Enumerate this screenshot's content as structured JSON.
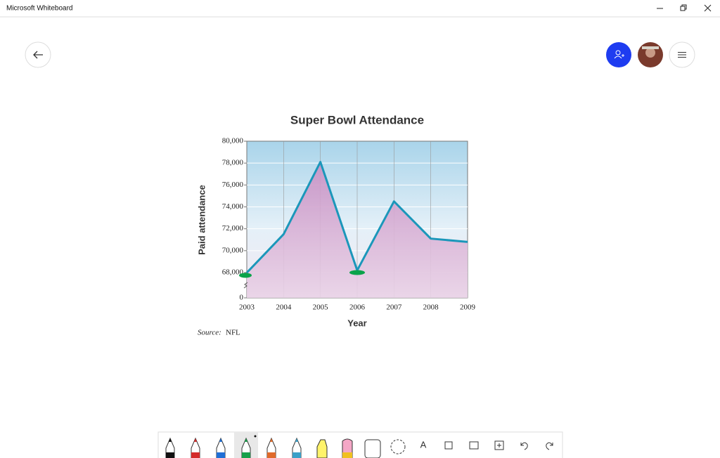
{
  "window": {
    "title": "Microsoft Whiteboard"
  },
  "toolbar": {
    "text_tool": "A"
  },
  "chart_data": {
    "type": "line",
    "title": "Super Bowl Attendance",
    "x_label": "Year",
    "y_label": "Paid attendance",
    "source_label": "Source:",
    "source": "NFL",
    "categories": [
      "2003",
      "2004",
      "2005",
      "2006",
      "2007",
      "2008",
      "2009"
    ],
    "values": [
      67600,
      71500,
      78100,
      68200,
      74500,
      71100,
      70800
    ],
    "color": "#1b97ba",
    "ylim": [
      0,
      80000
    ],
    "yticks": [
      0,
      {
        "value": 68000,
        "label": "68,000"
      },
      {
        "value": 70000,
        "label": "70,000"
      },
      {
        "value": 72000,
        "label": "72,000"
      },
      {
        "value": 74000,
        "label": "74,000"
      },
      {
        "value": 76000,
        "label": "76,000"
      },
      {
        "value": 78000,
        "label": "78,000"
      },
      {
        "value": 80000,
        "label": "80,000"
      }
    ],
    "axis_break": true,
    "grid": true
  }
}
